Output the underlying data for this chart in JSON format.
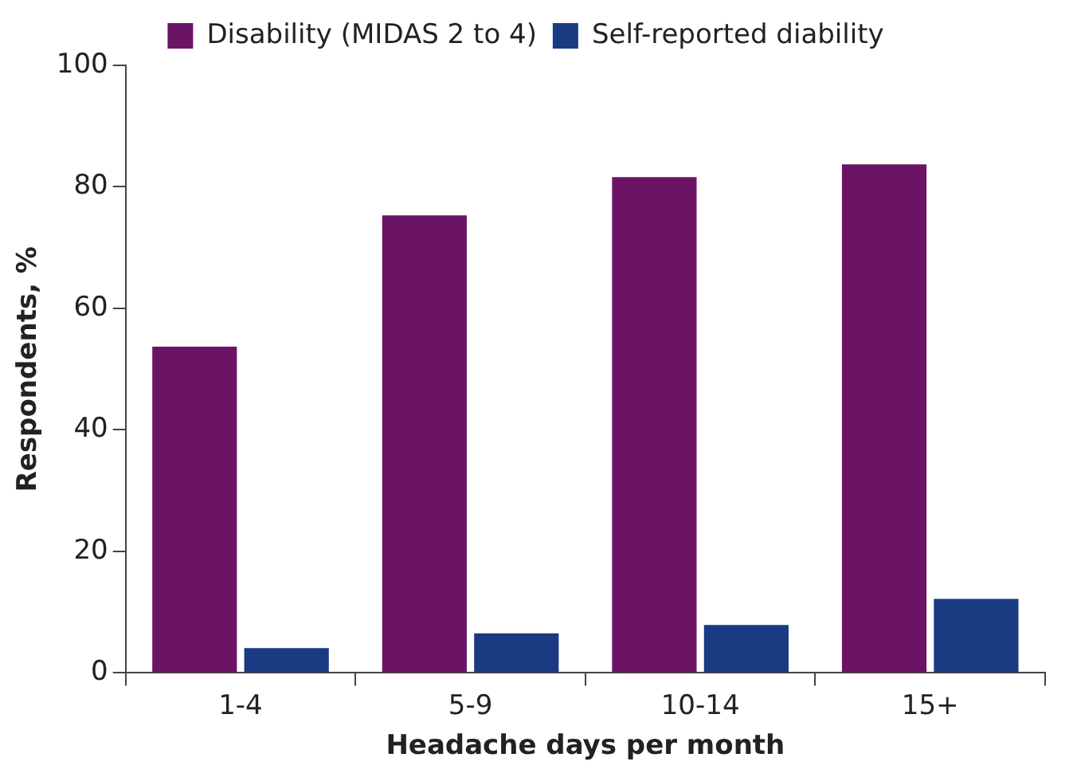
{
  "chart_data": {
    "type": "bar",
    "xlabel": "Headache days per month",
    "ylabel": "Respondents, %",
    "categories": [
      "1-4",
      "5-9",
      "10-14",
      "15+"
    ],
    "series": [
      {
        "name": "Disability (MIDAS 2 to 4)",
        "color": "#6b1466",
        "values": [
          53.7,
          75.3,
          81.6,
          83.7
        ]
      },
      {
        "name": "Self-reported diability",
        "color": "#1a3a82",
        "values": [
          4.1,
          6.5,
          7.9,
          12.2
        ]
      }
    ],
    "ylim": [
      0,
      100
    ],
    "yticks": [
      0,
      20,
      40,
      60,
      80,
      100
    ],
    "grid": false,
    "legend": "top"
  }
}
